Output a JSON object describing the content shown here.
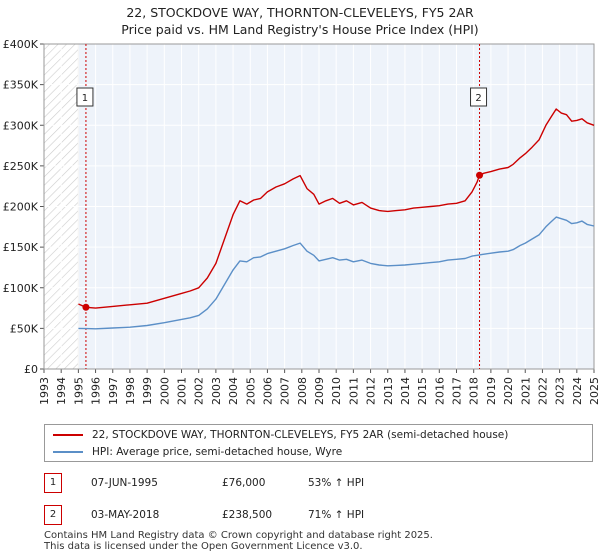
{
  "chart_data": {
    "type": "line",
    "title": "22, STOCKDOVE WAY, THORNTON-CLEVELEYS, FY5 2AR",
    "subtitle": "Price paid vs. HM Land Registry's House Price Index (HPI)",
    "xlabel": "",
    "ylabel": "",
    "xlim": [
      1993,
      2025
    ],
    "ylim": [
      0,
      400000
    ],
    "y_ticks": [
      0,
      50000,
      100000,
      150000,
      200000,
      250000,
      300000,
      350000,
      400000
    ],
    "y_tick_labels": [
      "£0",
      "£50K",
      "£100K",
      "£150K",
      "£200K",
      "£250K",
      "£300K",
      "£350K",
      "£400K"
    ],
    "x_ticks": [
      1993,
      1994,
      1995,
      1996,
      1997,
      1998,
      1999,
      2000,
      2001,
      2002,
      2003,
      2004,
      2005,
      2006,
      2007,
      2008,
      2009,
      2010,
      2011,
      2012,
      2013,
      2014,
      2015,
      2016,
      2017,
      2018,
      2019,
      2020,
      2021,
      2022,
      2023,
      2024,
      2025
    ],
    "x_tick_labels": [
      "1993",
      "1994",
      "1995",
      "1996",
      "1997",
      "1998",
      "1999",
      "2000",
      "2001",
      "2002",
      "2003",
      "2004",
      "2005",
      "2006",
      "2007",
      "2008",
      "2009",
      "2010",
      "2011",
      "2012",
      "2013",
      "2014",
      "2015",
      "2016",
      "2017",
      "2018",
      "2019",
      "2020",
      "2021",
      "2022",
      "2023",
      "2024",
      "2025"
    ],
    "grid": true,
    "hatched_region_before": 1995.0,
    "series": [
      {
        "name": "22, STOCKDOVE WAY, THORNTON-CLEVELEYS, FY5 2AR (semi-detached house)",
        "color": "#cc0000",
        "x": [
          1995.0,
          1995.44,
          1996.0,
          1997.0,
          1998.0,
          1999.0,
          2000.0,
          2001.0,
          2001.5,
          2002.0,
          2002.5,
          2003.0,
          2003.5,
          2004.0,
          2004.4,
          2004.8,
          2005.2,
          2005.6,
          2006.0,
          2006.5,
          2007.0,
          2007.5,
          2007.9,
          2008.3,
          2008.7,
          2009.0,
          2009.4,
          2009.8,
          2010.2,
          2010.6,
          2011.0,
          2011.5,
          2012.0,
          2012.5,
          2013.0,
          2013.5,
          2014.0,
          2014.5,
          2015.0,
          2015.5,
          2016.0,
          2016.5,
          2017.0,
          2017.5,
          2017.9,
          2018.2,
          2018.34,
          2018.6,
          2019.0,
          2019.5,
          2020.0,
          2020.3,
          2020.7,
          2021.0,
          2021.4,
          2021.8,
          2022.2,
          2022.5,
          2022.8,
          2023.1,
          2023.4,
          2023.7,
          2024.0,
          2024.3,
          2024.6,
          2025.0
        ],
        "y": [
          80000,
          76000,
          75000,
          77000,
          79000,
          81000,
          87000,
          93000,
          96000,
          100000,
          112000,
          130000,
          160000,
          190000,
          207000,
          203000,
          208000,
          210000,
          218000,
          224000,
          228000,
          234000,
          238000,
          222000,
          215000,
          203000,
          207000,
          210000,
          204000,
          207000,
          202000,
          205000,
          198000,
          195000,
          194000,
          195000,
          196000,
          198000,
          199000,
          200000,
          201000,
          203000,
          204000,
          207000,
          218000,
          230000,
          238500,
          241000,
          243000,
          246000,
          248000,
          252000,
          260000,
          265000,
          273000,
          282000,
          300000,
          310000,
          320000,
          315000,
          313000,
          305000,
          306000,
          308000,
          303000,
          300000
        ]
      },
      {
        "name": "HPI: Average price, semi-detached house, Wyre",
        "color": "#5b8fc7",
        "x": [
          1995.0,
          1995.5,
          1996.0,
          1997.0,
          1998.0,
          1999.0,
          2000.0,
          2001.0,
          2001.5,
          2002.0,
          2002.5,
          2003.0,
          2003.5,
          2004.0,
          2004.4,
          2004.8,
          2005.2,
          2005.6,
          2006.0,
          2006.5,
          2007.0,
          2007.5,
          2007.9,
          2008.3,
          2008.7,
          2009.0,
          2009.4,
          2009.8,
          2010.2,
          2010.6,
          2011.0,
          2011.5,
          2012.0,
          2012.5,
          2013.0,
          2013.5,
          2014.0,
          2014.5,
          2015.0,
          2015.5,
          2016.0,
          2016.5,
          2017.0,
          2017.5,
          2017.9,
          2018.2,
          2018.5,
          2019.0,
          2019.5,
          2020.0,
          2020.3,
          2020.7,
          2021.0,
          2021.4,
          2021.8,
          2022.2,
          2022.5,
          2022.8,
          2023.1,
          2023.4,
          2023.7,
          2024.0,
          2024.3,
          2024.6,
          2025.0
        ],
        "y": [
          50000,
          49700,
          49500,
          50500,
          51500,
          53500,
          57000,
          61000,
          63000,
          66000,
          74000,
          86000,
          104000,
          122000,
          133000,
          132000,
          137000,
          138000,
          142000,
          145000,
          148000,
          152000,
          155000,
          145000,
          140000,
          133000,
          135000,
          137000,
          134000,
          135000,
          132000,
          134000,
          130000,
          128000,
          127000,
          127500,
          128000,
          129000,
          130000,
          131000,
          132000,
          134000,
          135000,
          136000,
          139000,
          140000,
          141000,
          142500,
          144000,
          145000,
          147000,
          152000,
          155000,
          160000,
          165000,
          175000,
          181000,
          187000,
          185000,
          183000,
          179000,
          180000,
          182000,
          178000,
          176000
        ]
      }
    ],
    "annotations": [
      {
        "label": "1",
        "x": 1995.44,
        "y": 76000,
        "line_color": "#cc0000"
      },
      {
        "label": "2",
        "x": 2018.34,
        "y": 238500,
        "line_color": "#cc0000"
      }
    ],
    "sales": [
      {
        "marker": "1",
        "date": "07-JUN-1995",
        "price": "£76,000",
        "hpi": "53% ↑ HPI"
      },
      {
        "marker": "2",
        "date": "03-MAY-2018",
        "price": "£238,500",
        "hpi": "71% ↑ HPI"
      }
    ]
  },
  "footer": {
    "line1": "Contains HM Land Registry data © Crown copyright and database right 2025.",
    "line2": "This data is licensed under the Open Government Licence v3.0."
  }
}
